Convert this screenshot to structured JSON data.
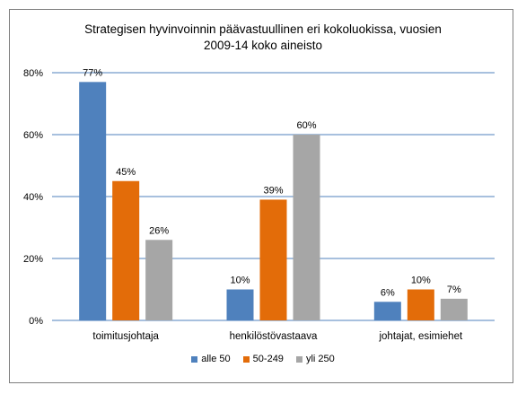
{
  "chart_data": {
    "type": "bar",
    "title_lines": [
      "Strategisen hyvinvoinnin päävastuullinen eri kokoluokissa, vuosien",
      "2009-14  koko aineisto"
    ],
    "categories": [
      "toimitusjohtaja",
      "henkilöstövastaava",
      "johtajat, esimiehet"
    ],
    "series": [
      {
        "name": "alle 50",
        "values": [
          77,
          10,
          6
        ],
        "labels": [
          "77%",
          "10%",
          "6%"
        ],
        "color": "#4f81bd"
      },
      {
        "name": "50-249",
        "values": [
          45,
          39,
          10
        ],
        "labels": [
          "45%",
          "39%",
          "10%"
        ],
        "color": "#e36c09"
      },
      {
        "name": "yli 250",
        "values": [
          26,
          60,
          7
        ],
        "labels": [
          "26%",
          "60%",
          "7%"
        ],
        "color": "#a6a6a6"
      }
    ],
    "ylim": [
      0,
      80
    ],
    "yticks": [
      0,
      20,
      40,
      60,
      80
    ],
    "ytick_labels": [
      "0%",
      "20%",
      "40%",
      "60%",
      "80%"
    ],
    "grid": true,
    "gridline_color": "#4f81bd",
    "legend_position": "bottom"
  }
}
